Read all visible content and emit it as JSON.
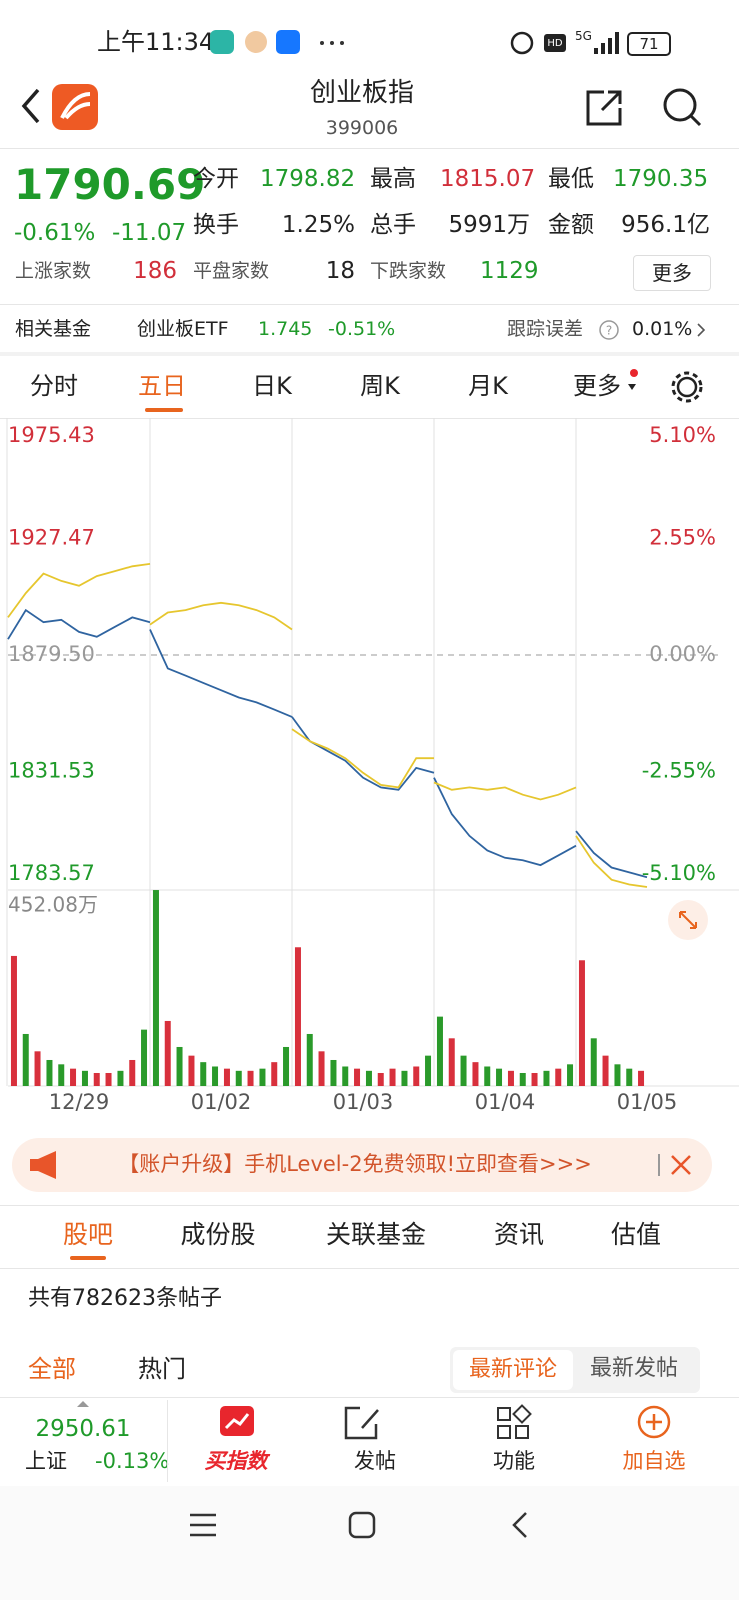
{
  "status_bar": {
    "time": "上午11:34",
    "network": "5G",
    "battery": "71"
  },
  "header": {
    "title": "创业板指",
    "code": "399006"
  },
  "quote": {
    "price": "1790.69",
    "change_pct": "-0.61%",
    "change": "-11.07",
    "stats": [
      {
        "label": "今开",
        "value": "1798.82"
      },
      {
        "label": "最高",
        "value": "1815.07"
      },
      {
        "label": "最低",
        "value": "1790.35"
      },
      {
        "label": "换手",
        "value": "1.25%"
      },
      {
        "label": "总手",
        "value": "5991万"
      },
      {
        "label": "金额",
        "value": "956.1亿"
      }
    ],
    "breadth": [
      {
        "label": "上涨家数",
        "value": "186"
      },
      {
        "label": "平盘家数",
        "value": "18"
      },
      {
        "label": "下跌家数",
        "value": "1129"
      }
    ],
    "more": "更多"
  },
  "fund": {
    "label": "相关基金",
    "name": "创业板ETF",
    "price": "1.745",
    "change": "-0.51%",
    "error_label": "跟踪误差",
    "error": "0.01%"
  },
  "tabs": [
    "分时",
    "五日",
    "日K",
    "周K",
    "月K",
    "更多"
  ],
  "chart_data": {
    "type": "line",
    "x": [
      0,
      0.125,
      0.25,
      0.375,
      0.5,
      0.625,
      0.75,
      0.875,
      1,
      1,
      1,
      1.125,
      1.25,
      1.375,
      1.5,
      1.625,
      1.75,
      1.875,
      2,
      2,
      2,
      2.125,
      2.25,
      2.375,
      2.5,
      2.625,
      2.75,
      2.875,
      3,
      3,
      3,
      3.125,
      3.25,
      3.375,
      3.5,
      3.625,
      3.75,
      3.875,
      4,
      4,
      4,
      4.125,
      4.25,
      4.375,
      4.5
    ],
    "series": [
      {
        "color": "#2f64a0",
        "values": [
          1886,
          1898,
          1893,
          1894,
          1889,
          1887,
          1891,
          1895,
          1893,
          null,
          1890,
          1874,
          1871,
          1868,
          1865,
          1862,
          1860,
          1857,
          1854,
          null,
          1854,
          1844,
          1840,
          1836,
          1829,
          1825,
          1824,
          1833,
          1831,
          null,
          1829,
          1814,
          1805,
          1799,
          1796,
          1795,
          1793,
          1797,
          1801,
          null,
          1807,
          1798,
          1792,
          1790,
          1788
        ]
      },
      {
        "color": "#e6c62e",
        "values": [
          1895,
          1905,
          1913,
          1910,
          1908,
          1912,
          1914,
          1916,
          1917,
          null,
          1892,
          1897,
          1898,
          1900,
          1901,
          1900,
          1898,
          1895,
          1890,
          null,
          1849,
          1844,
          1841,
          1837,
          1831,
          1826,
          1825,
          1837,
          1837,
          null,
          1827,
          1824,
          1825,
          1824,
          1825,
          1822,
          1820,
          1822,
          1825,
          null,
          1805,
          1794,
          1787,
          1785,
          1784
        ]
      }
    ],
    "xlim": [
      0,
      5
    ],
    "categories": [
      "12/29",
      "01/02",
      "01/03",
      "01/04",
      "01/05"
    ],
    "ylim": [
      1783.57,
      1975.43
    ],
    "yticks": [
      1975.43,
      1927.47,
      {
        "value": 1879.5,
        "label": "1879.50"
      },
      1831.53,
      1783.57
    ],
    "y2lim": [
      -5.1,
      5.1
    ],
    "y2ticks": [
      {
        "value": 5.1,
        "label": "5.10%"
      },
      {
        "value": 2.55,
        "label": "2.55%"
      },
      {
        "value": 0,
        "label": "0.00%"
      },
      {
        "value": -2.55,
        "label": "-2.55%"
      },
      {
        "value": -5.1,
        "label": "-5.10%"
      }
    ],
    "volume": {
      "type": "bar",
      "ylim": [
        0,
        452.08
      ],
      "yticks": [
        {
          "value": 452.08,
          "label": "452.08万"
        }
      ],
      "x": [
        0.042,
        0.125,
        0.208,
        0.292,
        0.375,
        0.458,
        0.542,
        0.625,
        0.708,
        0.792,
        0.875,
        0.958,
        1.042,
        1.125,
        1.208,
        1.292,
        1.375,
        1.458,
        1.542,
        1.625,
        1.708,
        1.792,
        1.875,
        1.958,
        2.042,
        2.125,
        2.208,
        2.292,
        2.375,
        2.458,
        2.542,
        2.625,
        2.708,
        2.792,
        2.875,
        2.958,
        3.042,
        3.125,
        3.208,
        3.292,
        3.375,
        3.458,
        3.542,
        3.625,
        3.708,
        3.792,
        3.875,
        3.958,
        4.042,
        4.125,
        4.208,
        4.292,
        4.375,
        4.458
      ],
      "values": [
        300,
        120,
        80,
        60,
        50,
        40,
        35,
        30,
        30,
        35,
        60,
        130,
        452,
        150,
        90,
        70,
        55,
        45,
        40,
        35,
        35,
        40,
        55,
        90,
        320,
        120,
        80,
        60,
        45,
        40,
        35,
        30,
        40,
        35,
        45,
        70,
        160,
        110,
        70,
        55,
        45,
        40,
        35,
        30,
        30,
        35,
        40,
        50,
        290,
        110,
        70,
        50,
        40,
        35
      ],
      "colors": [
        "#d8303c",
        "#2a9a2a",
        "#d8303c",
        "#2a9a2a",
        "#2a9a2a",
        "#d8303c",
        "#2a9a2a",
        "#d8303c",
        "#d8303c",
        "#2a9a2a",
        "#d8303c",
        "#2a9a2a",
        "#2a9a2a",
        "#d8303c",
        "#2a9a2a",
        "#d8303c",
        "#2a9a2a",
        "#2a9a2a",
        "#d8303c",
        "#2a9a2a",
        "#d8303c",
        "#2a9a2a",
        "#d8303c",
        "#2a9a2a",
        "#d8303c",
        "#2a9a2a",
        "#d8303c",
        "#2a9a2a",
        "#2a9a2a",
        "#d8303c",
        "#2a9a2a",
        "#d8303c",
        "#d8303c",
        "#2a9a2a",
        "#d8303c",
        "#2a9a2a",
        "#2a9a2a",
        "#d8303c",
        "#2a9a2a",
        "#d8303c",
        "#2a9a2a",
        "#2a9a2a",
        "#d8303c",
        "#2a9a2a",
        "#d8303c",
        "#2a9a2a",
        "#d8303c",
        "#2a9a2a",
        "#d8303c",
        "#2a9a2a",
        "#d8303c",
        "#2a9a2a",
        "#2a9a2a",
        "#d8303c"
      ]
    }
  },
  "banner": "【账户升级】手机Level-2免费领取!立即查看>>>",
  "sub_tabs": [
    "股吧",
    "成份股",
    "关联基金",
    "资讯",
    "估值"
  ],
  "post_count": "共有782623条帖子",
  "filters": [
    "全部",
    "热门"
  ],
  "sort": [
    "最新评论",
    "最新发帖"
  ],
  "bottom_bar": {
    "index_price": "2950.61",
    "index_name": "上证",
    "index_change": "-0.13%",
    "actions": [
      "买指数",
      "发帖",
      "功能",
      "加自选"
    ]
  }
}
